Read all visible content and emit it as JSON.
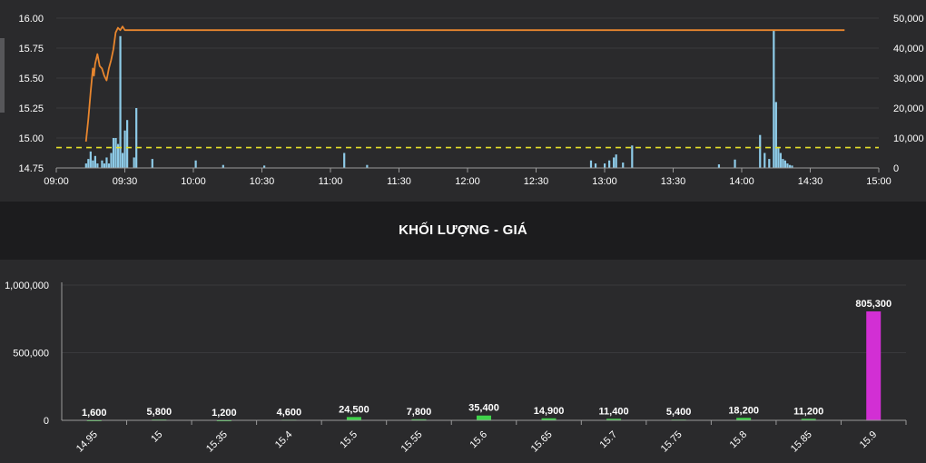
{
  "section_title": "KHỐI LƯỢNG - GIÁ",
  "chart_data": [
    {
      "type": "line",
      "x_ticks": [
        "09:00",
        "09:30",
        "10:00",
        "10:30",
        "11:00",
        "11:30",
        "12:00",
        "12:30",
        "13:00",
        "13:30",
        "14:00",
        "14:30",
        "15:00"
      ],
      "x_range": [
        "09:00",
        "15:00"
      ],
      "y_left_ticks": [
        "14.75",
        "15.00",
        "15.25",
        "15.50",
        "15.75",
        "16.00"
      ],
      "y_left_range": [
        14.75,
        16.0
      ],
      "y_right_ticks": [
        "0",
        "10,000",
        "20,000",
        "30,000",
        "40,000",
        "50,000"
      ],
      "y_right_range": [
        0,
        50000
      ],
      "reference_price": 14.92,
      "series": [
        {
          "type": "line",
          "axis": "left",
          "color": "#e8862e",
          "points": [
            [
              "09:13",
              14.97
            ],
            [
              "09:14",
              15.15
            ],
            [
              "09:15",
              15.38
            ],
            [
              "09:16",
              15.58
            ],
            [
              "09:16.5",
              15.52
            ],
            [
              "09:17",
              15.62
            ],
            [
              "09:18",
              15.7
            ],
            [
              "09:19",
              15.6
            ],
            [
              "09:20",
              15.58
            ],
            [
              "09:21",
              15.52
            ],
            [
              "09:22",
              15.48
            ],
            [
              "09:23",
              15.58
            ],
            [
              "09:24",
              15.65
            ],
            [
              "09:25",
              15.74
            ],
            [
              "09:26",
              15.88
            ],
            [
              "09:27",
              15.92
            ],
            [
              "09:28",
              15.9
            ],
            [
              "09:29",
              15.93
            ],
            [
              "09:30",
              15.9
            ],
            [
              "14:45",
              15.9
            ]
          ]
        },
        {
          "type": "bar",
          "axis": "right",
          "color": "#8ecbe8",
          "points": [
            [
              "09:13",
              1500
            ],
            [
              "09:14",
              3000
            ],
            [
              "09:15",
              5500
            ],
            [
              "09:16",
              2500
            ],
            [
              "09:17",
              4000
            ],
            [
              "09:18",
              1500
            ],
            [
              "09:20",
              2500
            ],
            [
              "09:21",
              1500
            ],
            [
              "09:22",
              3500
            ],
            [
              "09:23",
              1500
            ],
            [
              "09:24",
              5000
            ],
            [
              "09:25",
              10000
            ],
            [
              "09:26",
              10000
            ],
            [
              "09:27",
              8000
            ],
            [
              "09:28",
              44000
            ],
            [
              "09:29",
              5000
            ],
            [
              "09:30",
              12500
            ],
            [
              "09:31",
              16000
            ],
            [
              "09:34",
              3500
            ],
            [
              "09:35",
              20000
            ],
            [
              "09:42",
              3000
            ],
            [
              "10:01",
              2500
            ],
            [
              "10:13",
              1000
            ],
            [
              "10:31",
              800
            ],
            [
              "11:06",
              5000
            ],
            [
              "11:16",
              1000
            ],
            [
              "12:54",
              2500
            ],
            [
              "12:56",
              1500
            ],
            [
              "13:00",
              1500
            ],
            [
              "13:02",
              2500
            ],
            [
              "13:04",
              3500
            ],
            [
              "13:05",
              4500
            ],
            [
              "13:08",
              1800
            ],
            [
              "13:12",
              7500
            ],
            [
              "13:50",
              1200
            ],
            [
              "13:57",
              2800
            ],
            [
              "14:08",
              11000
            ],
            [
              "14:10",
              5000
            ],
            [
              "14:12",
              3000
            ],
            [
              "14:14",
              46000
            ],
            [
              "14:15",
              22000
            ],
            [
              "14:16",
              7000
            ],
            [
              "14:17",
              5000
            ],
            [
              "14:18",
              3000
            ],
            [
              "14:19",
              2500
            ],
            [
              "14:20",
              1500
            ],
            [
              "14:21",
              1000
            ],
            [
              "14:22",
              800
            ]
          ]
        }
      ]
    },
    {
      "type": "bar",
      "title": "KHỐI LƯỢNG - GIÁ",
      "categories": [
        "14.95",
        "15",
        "15.35",
        "15.4",
        "15.5",
        "15.55",
        "15.6",
        "15.65",
        "15.7",
        "15.75",
        "15.8",
        "15.85",
        "15.9"
      ],
      "values": [
        1600,
        5800,
        1200,
        4600,
        24500,
        7800,
        35400,
        14900,
        11400,
        5400,
        18200,
        11200,
        805300
      ],
      "value_labels": [
        "1,600",
        "5,800",
        "1,200",
        "4,600",
        "24,500",
        "7,800",
        "35,400",
        "14,900",
        "11,400",
        "5,400",
        "18,200",
        "11,200",
        "805,300"
      ],
      "y_ticks": [
        "0",
        "500,000",
        "1,000,000"
      ],
      "ylim": [
        0,
        1000000
      ],
      "bar_color": "#3fd34a",
      "highlight_color": "#d22fd4",
      "highlight_index": 12
    }
  ]
}
